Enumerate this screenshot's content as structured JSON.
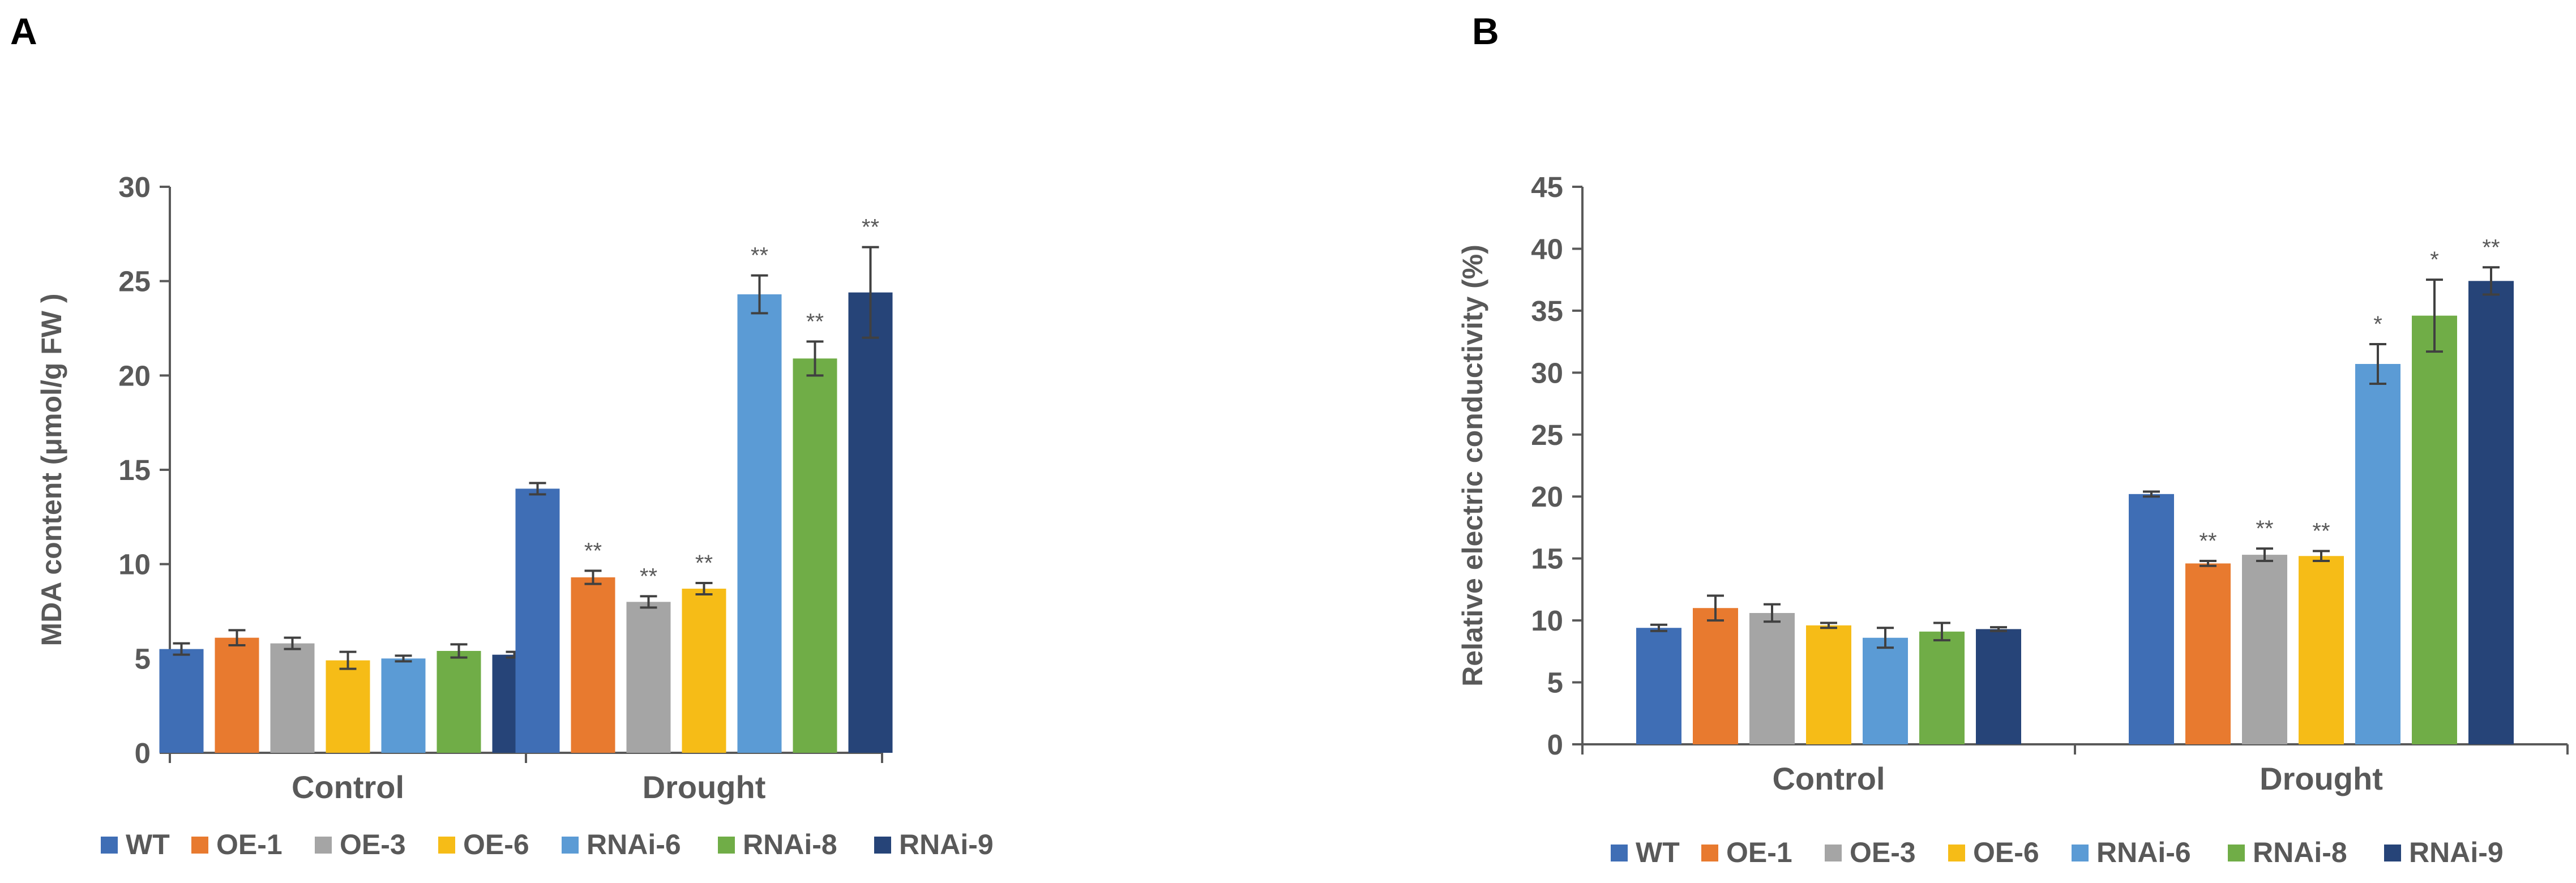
{
  "chart_data": [
    {
      "panel": "A",
      "type": "bar",
      "title": "",
      "xlabel": "",
      "ylabel": "MDA content (μmol/g FW )",
      "ylim": [
        0,
        30
      ],
      "yticks": [
        0,
        5,
        10,
        15,
        20,
        25,
        30
      ],
      "categories": [
        "Control",
        "Drought"
      ],
      "legend_position": "bottom",
      "series": [
        {
          "name": "WT",
          "color": "#3F6EB5",
          "values": [
            5.5,
            14.0
          ],
          "errors": [
            0.3,
            0.3
          ],
          "sig": [
            "",
            ""
          ]
        },
        {
          "name": "OE-1",
          "color": "#E87A2F",
          "values": [
            6.1,
            9.3
          ],
          "errors": [
            0.4,
            0.35
          ],
          "sig": [
            "",
            "**"
          ]
        },
        {
          "name": "OE-3",
          "color": "#A5A5A5",
          "values": [
            5.8,
            8.0
          ],
          "errors": [
            0.3,
            0.3
          ],
          "sig": [
            "",
            "**"
          ]
        },
        {
          "name": "OE-6",
          "color": "#F6BC17",
          "values": [
            4.9,
            8.7
          ],
          "errors": [
            0.45,
            0.3
          ],
          "sig": [
            "",
            "**"
          ]
        },
        {
          "name": "RNAi-6",
          "color": "#5B9BD5",
          "values": [
            5.0,
            24.3
          ],
          "errors": [
            0.15,
            1.0
          ],
          "sig": [
            "",
            "**"
          ]
        },
        {
          "name": "RNAi-8",
          "color": "#70AD47",
          "values": [
            5.4,
            20.9
          ],
          "errors": [
            0.35,
            0.9
          ],
          "sig": [
            "",
            "**"
          ]
        },
        {
          "name": "RNAi-9",
          "color": "#264478",
          "values": [
            5.2,
            24.4
          ],
          "errors": [
            0.15,
            2.4
          ],
          "sig": [
            "",
            "**"
          ]
        }
      ]
    },
    {
      "panel": "B",
      "type": "bar",
      "title": "",
      "xlabel": "",
      "ylabel": "Relative electric conductivity (%)",
      "ylim": [
        0,
        45
      ],
      "yticks": [
        0,
        5,
        10,
        15,
        20,
        25,
        30,
        35,
        40,
        45
      ],
      "categories": [
        "Control",
        "Drought"
      ],
      "legend_position": "bottom",
      "series": [
        {
          "name": "WT",
          "color": "#3F6EB5",
          "values": [
            9.4,
            20.2
          ],
          "errors": [
            0.25,
            0.2
          ],
          "sig": [
            "",
            ""
          ]
        },
        {
          "name": "OE-1",
          "color": "#E87A2F",
          "values": [
            11.0,
            14.6
          ],
          "errors": [
            1.0,
            0.2
          ],
          "sig": [
            "",
            "**"
          ]
        },
        {
          "name": "OE-3",
          "color": "#A5A5A5",
          "values": [
            10.6,
            15.3
          ],
          "errors": [
            0.7,
            0.5
          ],
          "sig": [
            "",
            "**"
          ]
        },
        {
          "name": "OE-6",
          "color": "#F6BC17",
          "values": [
            9.6,
            15.2
          ],
          "errors": [
            0.2,
            0.4
          ],
          "sig": [
            "",
            "**"
          ]
        },
        {
          "name": "RNAi-6",
          "color": "#5B9BD5",
          "values": [
            8.6,
            30.7
          ],
          "errors": [
            0.8,
            1.6
          ],
          "sig": [
            "",
            "*"
          ]
        },
        {
          "name": "RNAi-8",
          "color": "#70AD47",
          "values": [
            9.1,
            34.6
          ],
          "errors": [
            0.7,
            2.9
          ],
          "sig": [
            "",
            "*"
          ]
        },
        {
          "name": "RNAi-9",
          "color": "#264478",
          "values": [
            9.3,
            37.4
          ],
          "errors": [
            0.15,
            1.1
          ],
          "sig": [
            "",
            "**"
          ]
        }
      ]
    }
  ]
}
